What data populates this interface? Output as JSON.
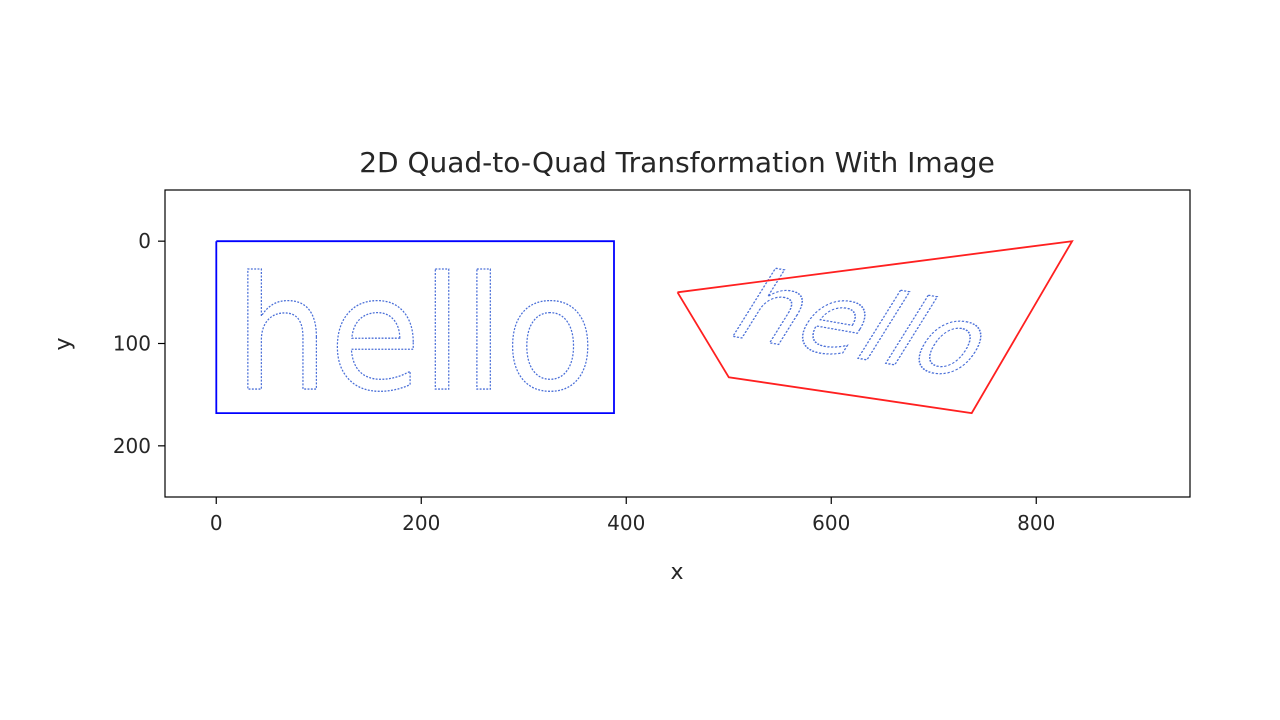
{
  "chart_data": {
    "type": "line",
    "title": "2D Quad-to-Quad Transformation With Image",
    "xlabel": "x",
    "ylabel": "y",
    "xlim": [
      -50,
      950
    ],
    "ylim": [
      250,
      -50
    ],
    "y_inverted": true,
    "grid": false,
    "x_ticks": [
      0,
      200,
      400,
      600,
      800
    ],
    "y_ticks": [
      0,
      100,
      200
    ],
    "image_text": "hello",
    "image_color": "#4a6fd8",
    "series": [
      {
        "color": "#0000ff",
        "x": [
          0,
          388,
          388,
          0,
          0
        ],
        "y": [
          0,
          0,
          168,
          168,
          0
        ]
      },
      {
        "color": "#ff2020",
        "x": [
          450,
          835,
          737,
          500,
          450
        ],
        "y": [
          50,
          0,
          168,
          133,
          50
        ]
      }
    ]
  }
}
